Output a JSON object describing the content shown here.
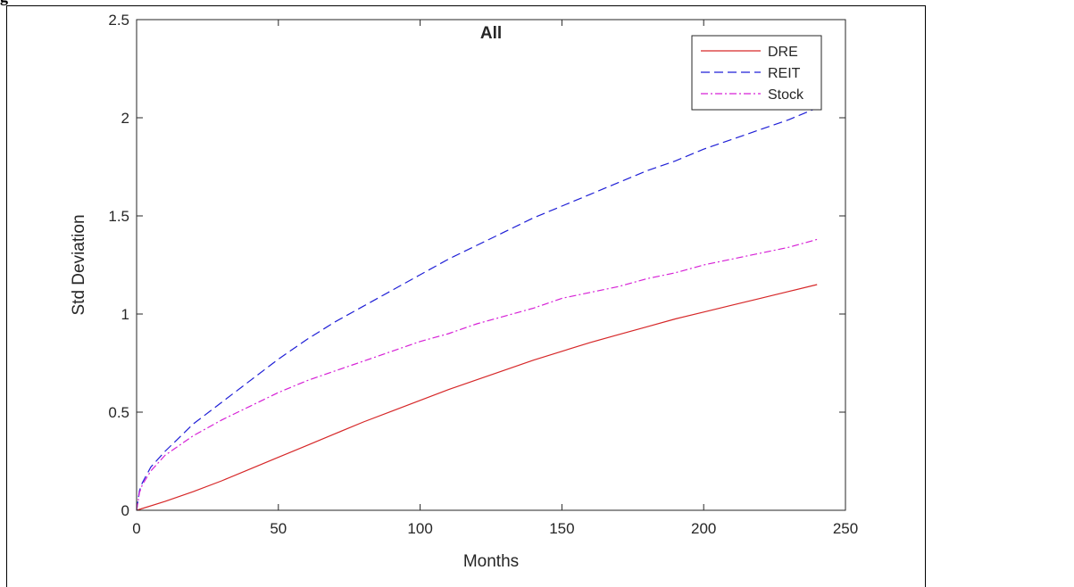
{
  "page": {
    "heading_fragment": "g"
  },
  "chart_data": {
    "type": "line",
    "title": "All",
    "xlabel": "Months",
    "ylabel": "Std Deviation",
    "xlim": [
      0,
      250
    ],
    "ylim": [
      0,
      2.5
    ],
    "xticks": [
      0,
      50,
      100,
      150,
      200,
      250
    ],
    "yticks": [
      0,
      0.5,
      1,
      1.5,
      2,
      2.5
    ],
    "xtick_labels": [
      "0",
      "50",
      "100",
      "150",
      "200",
      "250"
    ],
    "ytick_labels": [
      "0",
      "0.5",
      "1",
      "1.5",
      "2",
      "2.5"
    ],
    "grid": false,
    "legend_position": "top-right",
    "series": [
      {
        "name": "DRE",
        "color": "#d62728",
        "style": "solid",
        "x": [
          0,
          10,
          20,
          30,
          40,
          50,
          60,
          70,
          80,
          90,
          100,
          110,
          120,
          130,
          140,
          150,
          160,
          170,
          180,
          190,
          200,
          210,
          220,
          230,
          240
        ],
        "y": [
          0,
          0.045,
          0.095,
          0.15,
          0.21,
          0.27,
          0.33,
          0.39,
          0.45,
          0.505,
          0.56,
          0.615,
          0.665,
          0.715,
          0.765,
          0.81,
          0.855,
          0.895,
          0.935,
          0.975,
          1.01,
          1.045,
          1.08,
          1.115,
          1.15
        ]
      },
      {
        "name": "REIT",
        "color": "#1f1fd6",
        "style": "dashed",
        "x": [
          0,
          1,
          2,
          5,
          10,
          20,
          30,
          40,
          50,
          60,
          70,
          80,
          90,
          100,
          110,
          120,
          130,
          140,
          150,
          160,
          170,
          180,
          190,
          200,
          210,
          220,
          230,
          240
        ],
        "y": [
          0,
          0.1,
          0.14,
          0.22,
          0.3,
          0.44,
          0.55,
          0.66,
          0.77,
          0.87,
          0.96,
          1.04,
          1.12,
          1.2,
          1.28,
          1.35,
          1.42,
          1.49,
          1.55,
          1.61,
          1.67,
          1.73,
          1.78,
          1.84,
          1.89,
          1.94,
          1.99,
          2.05
        ]
      },
      {
        "name": "Stock",
        "color": "#d620d6",
        "style": "dashdot",
        "x": [
          0,
          1,
          2,
          5,
          10,
          20,
          30,
          40,
          50,
          60,
          70,
          80,
          90,
          100,
          110,
          120,
          130,
          140,
          150,
          160,
          170,
          180,
          190,
          200,
          210,
          220,
          230,
          240
        ],
        "y": [
          0,
          0.09,
          0.13,
          0.2,
          0.28,
          0.38,
          0.46,
          0.53,
          0.6,
          0.66,
          0.71,
          0.76,
          0.81,
          0.86,
          0.9,
          0.95,
          0.99,
          1.03,
          1.08,
          1.11,
          1.14,
          1.18,
          1.21,
          1.25,
          1.28,
          1.31,
          1.34,
          1.38
        ]
      }
    ]
  }
}
